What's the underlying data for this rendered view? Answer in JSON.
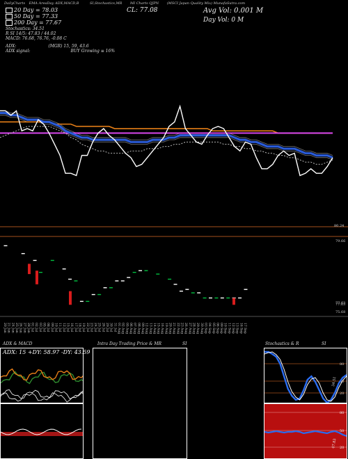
{
  "header": {
    "items": [
      "DailyCharts",
      "EMA",
      "AreaDay",
      "ADX,MACD,B",
      "SI,Stochastics,MR",
      "MI Charts QJPN",
      "(MSCI Japan Quality Mix) MunafaSutra.com"
    ],
    "avg_vol": "Avg Vol: 0.001 M",
    "day_vol": "Day Vol: 0   M",
    "cl": "CL: 77.08"
  },
  "legend": {
    "ema20": "20 Day = 78.03",
    "ema50": "50 Day = 77.33",
    "ema200": "200 Day = 77.67",
    "stoch": "Stochastics: 34.51",
    "si": "R       SI 14/5: 47.83 / 44.02",
    "macd": "MACD: 76.68, 76.76, -0.08  C",
    "adx_label": "ADX:",
    "adx_vals": "(MGR) 15, 59, 43.6",
    "adx_signal_label": "ADX  signal:",
    "adx_signal": "BUY Growing ≡ 16%"
  },
  "colors": {
    "ema20": "#2a5bd7",
    "ema50": "#ffffff",
    "ema200": "#e57e17",
    "ema200_alt": "#d946ef",
    "red": "#d81c1c",
    "green": "#00c040",
    "price_line": "#ffffff",
    "orange_sep": "#a5501b"
  },
  "chart_data": [
    {
      "type": "line",
      "name": "price-panel",
      "x": [
        "2024-06-20",
        "2024-06-21",
        "2024-06-24",
        "2024-06-25",
        "2024-06-26",
        "2024-06-27",
        "2024-06-28",
        "2024-07-01",
        "2024-07-02",
        "2024-07-03",
        "2024-07-05",
        "2024-07-08",
        "2024-07-09",
        "2024-07-10",
        "2024-07-11",
        "2024-07-12",
        "2024-07-15",
        "2024-07-16",
        "2024-07-17",
        "2024-07-18",
        "2024-07-19",
        "2024-07-22",
        "2024-07-23",
        "2024-07-24",
        "2024-07-25",
        "2024-07-26",
        "2024-07-29",
        "2024-07-30",
        "2024-07-31",
        "2024-08-01",
        "2024-08-02",
        "2024-08-05",
        "2024-08-06",
        "2024-08-07",
        "2024-08-08",
        "2024-08-09",
        "2024-08-12",
        "2024-08-13",
        "2024-08-14",
        "2024-08-15",
        "2024-08-16",
        "2024-08-19",
        "2024-08-20",
        "2024-08-21",
        "2024-08-22",
        "2024-08-23",
        "2024-08-26",
        "2024-08-27",
        "2024-08-28",
        "2024-08-29",
        "2024-08-30",
        "2024-09-03",
        "2024-09-04",
        "2024-09-05",
        "2024-09-06",
        "2024-09-09",
        "2024-09-10",
        "2024-09-11",
        "2024-09-12",
        "2024-09-13",
        "2024-09-16",
        "2024-09-17"
      ],
      "series": [
        {
          "name": "close",
          "values": [
            79.2,
            79.2,
            79.0,
            79.2,
            78.3,
            78.4,
            78.3,
            78.8,
            78.6,
            78.2,
            77.7,
            77.2,
            76.4,
            76.4,
            76.3,
            77.2,
            77.2,
            77.8,
            78.2,
            78.4,
            78.1,
            77.9,
            77.6,
            77.3,
            77.1,
            76.7,
            76.8,
            77.1,
            77.4,
            77.7,
            78.0,
            78.5,
            78.7,
            79.4,
            78.4,
            78.1,
            77.8,
            77.7,
            78.1,
            78.4,
            78.5,
            78.4,
            78.0,
            77.6,
            77.4,
            77.8,
            77.7,
            77.1,
            76.6,
            76.6,
            76.8,
            77.2,
            77.4,
            77.2,
            77.3,
            76.3,
            76.4,
            76.6,
            76.4,
            76.4,
            76.7,
            77.1
          ]
        },
        {
          "name": "",
          "values": [
            79.1,
            79.1,
            79.0,
            79.0,
            78.9,
            78.8,
            78.8,
            78.8,
            78.7,
            78.7,
            78.6,
            78.5,
            78.3,
            78.2,
            78.1,
            78.0,
            78.0,
            77.9,
            77.9,
            77.9,
            77.9,
            77.9,
            77.9,
            77.9,
            77.8,
            77.8,
            77.8,
            77.8,
            77.9,
            77.9,
            77.9,
            78.0,
            78.0,
            78.1,
            78.1,
            78.1,
            78.1,
            78.1,
            78.1,
            78.1,
            78.1,
            78.1,
            78.1,
            78.0,
            77.9,
            77.9,
            77.8,
            77.8,
            77.7,
            77.6,
            77.6,
            77.6,
            77.5,
            77.5,
            77.5,
            77.4,
            77.3,
            77.3,
            77.2,
            77.2,
            77.2,
            77.1
          ]
        },
        {
          "name": "",
          "values": [
            78.0,
            78.1,
            78.2,
            78.3,
            78.4,
            78.5,
            78.5,
            78.5,
            78.5,
            78.5,
            78.4,
            78.3,
            78.2,
            78.0,
            77.9,
            77.7,
            77.6,
            77.5,
            77.4,
            77.4,
            77.3,
            77.3,
            77.3,
            77.3,
            77.4,
            77.4,
            77.4,
            77.5,
            77.5,
            77.5,
            77.6,
            77.6,
            77.7,
            77.7,
            77.8,
            77.8,
            77.8,
            77.8,
            77.8,
            77.8,
            77.8,
            77.7,
            77.7,
            77.6,
            77.6,
            77.5,
            77.5,
            77.4,
            77.4,
            77.3,
            77.3,
            77.2,
            77.2,
            77.1,
            77.1,
            77.0,
            76.9,
            76.9,
            76.8,
            76.8,
            76.9,
            77.0
          ]
        },
        {
          "name": "",
          "values": [
            78.2,
            78.2,
            78.2,
            78.2,
            78.2,
            78.2,
            78.2,
            78.2,
            78.2,
            78.2,
            78.2,
            78.2,
            78.2,
            78.2,
            78.2,
            78.2,
            78.2,
            78.2,
            78.2,
            78.2,
            78.2,
            78.2,
            78.2,
            78.2,
            78.2,
            78.2,
            78.2,
            78.2,
            78.2,
            78.2,
            78.2,
            78.2,
            78.2,
            78.2,
            78.2,
            78.2,
            78.2,
            78.2,
            78.2,
            78.2,
            78.2,
            78.2,
            78.2,
            78.2,
            78.2,
            78.2,
            78.2,
            78.2,
            78.2,
            78.2,
            78.2,
            78.2,
            78.2,
            78.2,
            78.2,
            78.2,
            78.2,
            78.2,
            78.2,
            78.2,
            78.2,
            78.2
          ]
        },
        {
          "name": "",
          "values": [
            78.7,
            78.7,
            78.7,
            78.7,
            78.7,
            78.7,
            78.7,
            78.7,
            78.7,
            78.7,
            78.6,
            78.6,
            78.6,
            78.6,
            78.5,
            78.5,
            78.5,
            78.5,
            78.5,
            78.5,
            78.5,
            78.4,
            78.4,
            78.4,
            78.4,
            78.4,
            78.4,
            78.4,
            78.4,
            78.4,
            78.4,
            78.4,
            78.4,
            78.4,
            78.4,
            78.4,
            78.4,
            78.4,
            78.4,
            78.3,
            78.3,
            78.3,
            78.3,
            78.3,
            78.3,
            78.3,
            78.3,
            78.3,
            78.3,
            78.3,
            78.3,
            78.2,
            78.2,
            78.2,
            78.2,
            78.2,
            78.2,
            78.2,
            78.2,
            78.2,
            78.2,
            78.2
          ]
        }
      ]
    },
    {
      "type": "bar",
      "name": "candles-panel",
      "yticks": [
        "79.66",
        "77.63",
        "77.63",
        "75.68"
      ],
      "series": [
        {
          "name": "open",
          "values": [
            79.66,
            null,
            null,
            79.2,
            null,
            78.8,
            78.1,
            null,
            78.8,
            null,
            78.3,
            77.7,
            77.6,
            76.4,
            76.4,
            76.8,
            76.8,
            77.2,
            77.2,
            77.6,
            77.6,
            77.8,
            78.1,
            78.2,
            78.2,
            null,
            78.0,
            null,
            77.7,
            77.4,
            77.0,
            77.1,
            76.9,
            76.9,
            76.6,
            76.6,
            76.6,
            76.6,
            76.6,
            76.6,
            76.6,
            77.1
          ]
        },
        {
          "name": "close",
          "values": [
            79.66,
            null,
            null,
            79.2,
            null,
            78.8,
            78.1,
            null,
            78.8,
            null,
            78.3,
            77.7,
            77.6,
            76.4,
            76.4,
            76.8,
            76.8,
            77.2,
            77.2,
            77.6,
            77.6,
            77.8,
            78.1,
            78.2,
            78.2,
            null,
            78.0,
            null,
            77.7,
            77.4,
            77.0,
            77.1,
            76.9,
            76.9,
            76.6,
            76.6,
            76.6,
            76.6,
            76.6,
            76.6,
            76.6,
            77.1
          ]
        }
      ]
    }
  ],
  "date_labels": [
    "20 Jun",
    "21 Jun",
    "24 Jun",
    "25 Jun",
    "26 Jun",
    "27 Jun",
    "28 Jun",
    "01 Jul",
    "02 Jul",
    "03 Jul",
    "05 Jul",
    "08 Jul",
    "09 Jul",
    "10 Jul",
    "11 Jul",
    "12 Jul",
    "15 Jul",
    "16 Jul",
    "17 Jul",
    "18 Jul",
    "19 Jul",
    "22 Jul",
    "23 Jul",
    "24 Jul",
    "25 Jul",
    "26 Jul",
    "29 Jul",
    "30 Jul",
    "31 Jul",
    "01 Aug",
    "02 Aug",
    "05 Aug",
    "06 Aug",
    "07 Aug",
    "08 Aug",
    "09 Aug",
    "12 Aug",
    "13 Aug",
    "14 Aug",
    "15 Aug",
    "16 Aug",
    "19 Aug",
    "20 Aug",
    "21 Aug",
    "22 Aug",
    "23 Aug",
    "26 Aug",
    "27 Aug",
    "28 Aug",
    "29 Aug",
    "30 Aug",
    "03 Sep",
    "04 Sep",
    "05 Sep",
    "06 Sep",
    "09 Sep",
    "10 Sep",
    "11 Sep",
    "12 Sep",
    "13 Sep",
    "16 Sep",
    "17 Sep"
  ],
  "price_tick_right": "80.24",
  "lower_panels": {
    "adx_title": "ADX  & MACD",
    "adx_readout": "ADX: 15 +DY: 58.97 -DY: 43.59",
    "intraday_title": "Intra  Day Trading Price  & MR",
    "si_title": "SI",
    "stoch_title": "Stochastics & R",
    "si2_title": "SI",
    "stoch_ticks": [
      "80",
      "50",
      "20"
    ],
    "si_ticks": [
      "80",
      "50",
      "20"
    ],
    "stoch_value": "34.51",
    "si_value": "47.83"
  }
}
